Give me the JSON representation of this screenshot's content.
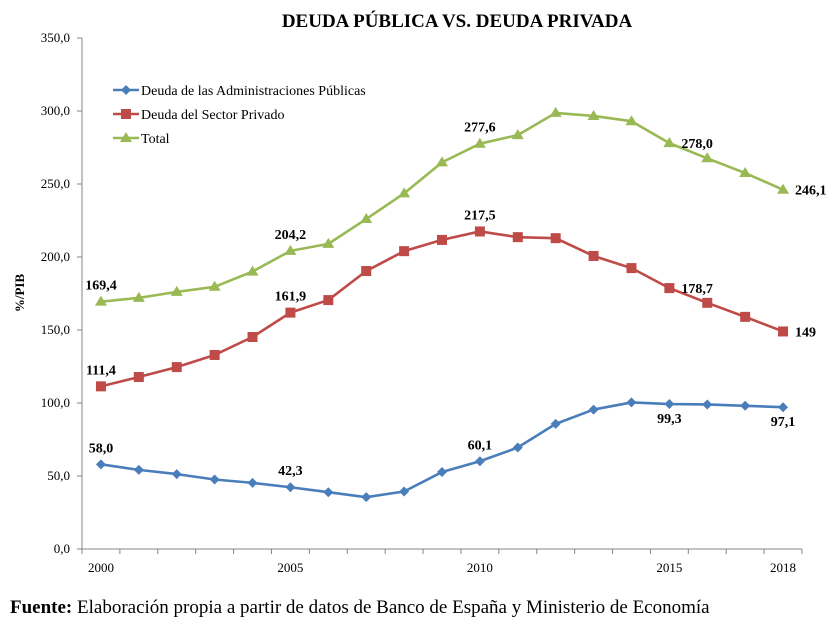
{
  "chart_data": {
    "type": "line",
    "title": "DEUDA PÚBLICA VS. DEUDA PRIVADA",
    "xlabel": "",
    "ylabel": "%/PIB",
    "ylim": [
      0,
      350
    ],
    "ytick_step": 50,
    "ytick_labels": [
      "0,0",
      "50,0",
      "100,0",
      "150,0",
      "200,0",
      "250,0",
      "300,0",
      "350,0"
    ],
    "grid": false,
    "legend_position": "top-left",
    "categories": [
      "2000",
      "2001",
      "2002",
      "2003",
      "2004",
      "2005",
      "2006",
      "2007",
      "2008",
      "2009",
      "2010",
      "2011",
      "2012",
      "2013",
      "2014",
      "2015",
      "2016",
      "2017",
      "2018"
    ],
    "xtick_labels": {
      "0": "2000",
      "5": "2005",
      "10": "2010",
      "15": "2015",
      "18": "2018"
    },
    "series": [
      {
        "name": "Deuda de las Administraciones Públicas",
        "color": "#4a7ebb",
        "marker": "diamond",
        "values": [
          58.0,
          54.2,
          51.3,
          47.6,
          45.3,
          42.3,
          38.9,
          35.5,
          39.4,
          52.7,
          60.1,
          69.5,
          85.7,
          95.5,
          100.4,
          99.3,
          99.0,
          98.1,
          97.1
        ],
        "labels": [
          {
            "index": 0,
            "text": "58,0",
            "pos": "above"
          },
          {
            "index": 5,
            "text": "42,3",
            "pos": "above"
          },
          {
            "index": 10,
            "text": "60,1",
            "pos": "above"
          },
          {
            "index": 15,
            "text": "99,3",
            "pos": "below"
          },
          {
            "index": 18,
            "text": "97,1",
            "pos": "below"
          }
        ]
      },
      {
        "name": "Deuda del Sector Privado",
        "color": "#be4b48",
        "marker": "square",
        "values": [
          111.4,
          117.8,
          124.6,
          132.9,
          145.2,
          161.9,
          170.5,
          190.4,
          204.0,
          211.7,
          217.5,
          213.6,
          212.9,
          200.7,
          192.4,
          178.7,
          168.6,
          159.0,
          149.0
        ],
        "labels": [
          {
            "index": 0,
            "text": "111,4",
            "pos": "above"
          },
          {
            "index": 5,
            "text": "161,9",
            "pos": "above"
          },
          {
            "index": 10,
            "text": "217,5",
            "pos": "above"
          },
          {
            "index": 15,
            "text": "178,7",
            "pos": "right"
          },
          {
            "index": 18,
            "text": "149",
            "pos": "right"
          }
        ]
      },
      {
        "name": "Total",
        "color": "#98b954",
        "marker": "triangle",
        "values": [
          169.4,
          172.0,
          176.1,
          179.6,
          190.0,
          204.2,
          209.0,
          226.0,
          243.6,
          264.8,
          277.6,
          283.5,
          298.7,
          296.6,
          293.0,
          278.0,
          267.6,
          257.5,
          246.1
        ],
        "labels": [
          {
            "index": 0,
            "text": "169,4",
            "pos": "above"
          },
          {
            "index": 5,
            "text": "204,2",
            "pos": "above"
          },
          {
            "index": 10,
            "text": "277,6",
            "pos": "above"
          },
          {
            "index": 15,
            "text": "278,0",
            "pos": "right"
          },
          {
            "index": 18,
            "text": "246,1",
            "pos": "right"
          }
        ]
      }
    ]
  },
  "source": {
    "label": "Fuente:",
    "text": " Elaboración propia a partir de datos de Banco de España y Ministerio de Economía"
  }
}
